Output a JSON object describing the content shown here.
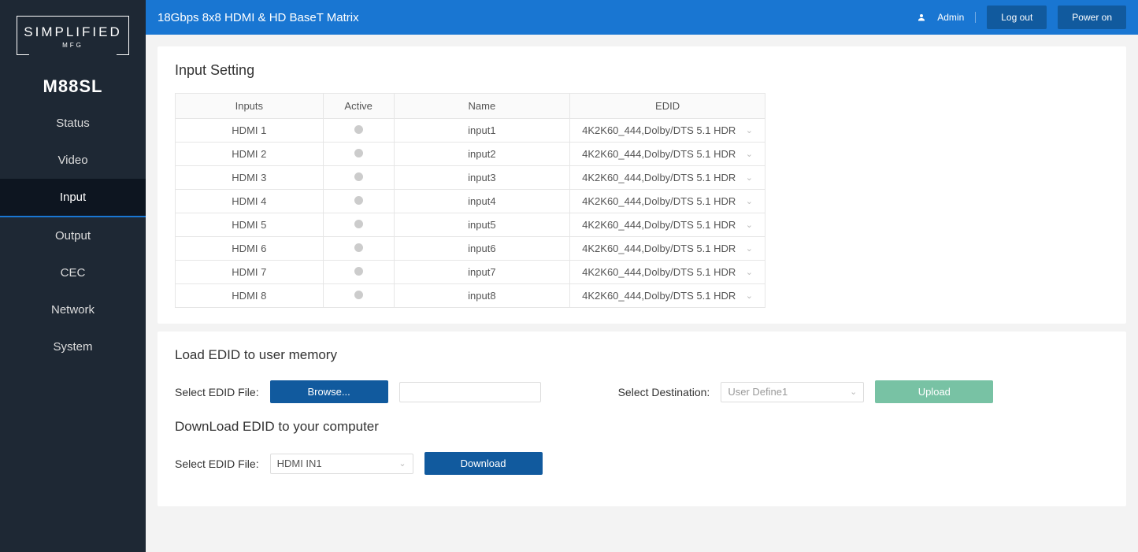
{
  "brand": {
    "name": "SIMPLIFIED",
    "sub": "MFG",
    "model": "M88SL"
  },
  "topbar": {
    "title": "18Gbps 8x8 HDMI & HD BaseT Matrix",
    "user": "Admin",
    "logout": "Log out",
    "power": "Power on"
  },
  "nav": {
    "items": [
      "Status",
      "Video",
      "Input",
      "Output",
      "CEC",
      "Network",
      "System"
    ],
    "activeIndex": 2
  },
  "inputSetting": {
    "title": "Input Setting",
    "headers": {
      "inputs": "Inputs",
      "active": "Active",
      "name": "Name",
      "edid": "EDID"
    },
    "rows": [
      {
        "input": "HDMI 1",
        "name": "input1",
        "edid": "4K2K60_444,Dolby/DTS 5.1 HDR"
      },
      {
        "input": "HDMI 2",
        "name": "input2",
        "edid": "4K2K60_444,Dolby/DTS 5.1 HDR"
      },
      {
        "input": "HDMI 3",
        "name": "input3",
        "edid": "4K2K60_444,Dolby/DTS 5.1 HDR"
      },
      {
        "input": "HDMI 4",
        "name": "input4",
        "edid": "4K2K60_444,Dolby/DTS 5.1 HDR"
      },
      {
        "input": "HDMI 5",
        "name": "input5",
        "edid": "4K2K60_444,Dolby/DTS 5.1 HDR"
      },
      {
        "input": "HDMI 6",
        "name": "input6",
        "edid": "4K2K60_444,Dolby/DTS 5.1 HDR"
      },
      {
        "input": "HDMI 7",
        "name": "input7",
        "edid": "4K2K60_444,Dolby/DTS 5.1 HDR"
      },
      {
        "input": "HDMI 8",
        "name": "input8",
        "edid": "4K2K60_444,Dolby/DTS 5.1 HDR"
      }
    ]
  },
  "loadEdid": {
    "title": "Load EDID to user memory",
    "selectFile": "Select EDID File:",
    "browse": "Browse...",
    "fileValue": "",
    "selectDest": "Select Destination:",
    "destValue": "User Define1",
    "upload": "Upload"
  },
  "downloadEdid": {
    "title": "DownLoad EDID to your computer",
    "selectFile": "Select EDID File:",
    "sourceValue": "HDMI IN1",
    "download": "Download"
  },
  "colors": {
    "sidebar": "#1e2834",
    "sidebarActive": "#0d1520",
    "accent": "#1976d2",
    "btnPrimary": "#115a9e",
    "btnUpload": "#78c2a4",
    "dot": "#cccccc"
  }
}
